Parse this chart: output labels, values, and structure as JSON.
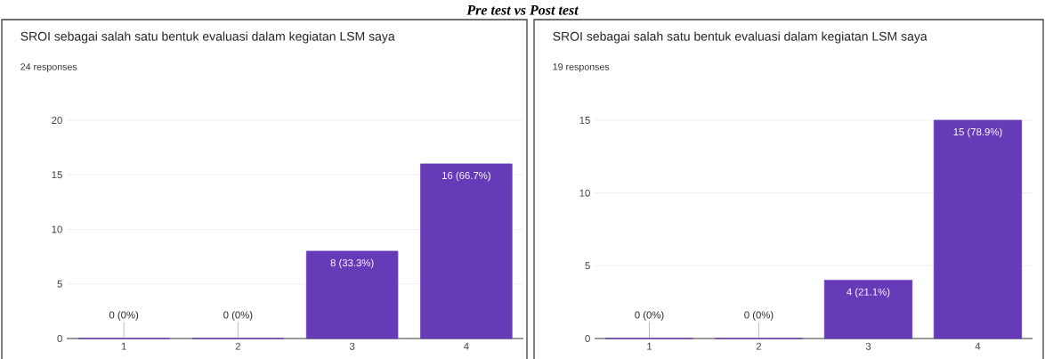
{
  "chart_data": [
    {
      "type": "bar",
      "title": "SROI sebagai salah satu bentuk evaluasi dalam kegiatan LSM saya",
      "subtitle": "24 responses",
      "annotations": [
        "Pre test vs Post test"
      ],
      "categories": [
        "1",
        "2",
        "3",
        "4"
      ],
      "values": [
        0,
        0,
        8,
        16
      ],
      "value_labels": [
        "0 (0%)",
        "0 (0%)",
        "8 (33.3%)",
        "16 (66.7%)"
      ],
      "color": "#673ab7",
      "ylim": [
        0,
        20
      ],
      "yticks": [
        0,
        5,
        10,
        15,
        20
      ],
      "grid": "y"
    },
    {
      "type": "bar",
      "title": "SROI sebagai salah satu bentuk evaluasi dalam kegiatan LSM saya",
      "subtitle": "19 responses",
      "categories": [
        "1",
        "2",
        "3",
        "4"
      ],
      "values": [
        0,
        0,
        4,
        15
      ],
      "value_labels": [
        "0 (0%)",
        "0 (0%)",
        "4 (21.1%)",
        "15 (78.9%)"
      ],
      "color": "#673ab7",
      "ylim": [
        0,
        15
      ],
      "yticks": [
        0,
        5,
        10,
        15
      ],
      "grid": "y"
    }
  ]
}
